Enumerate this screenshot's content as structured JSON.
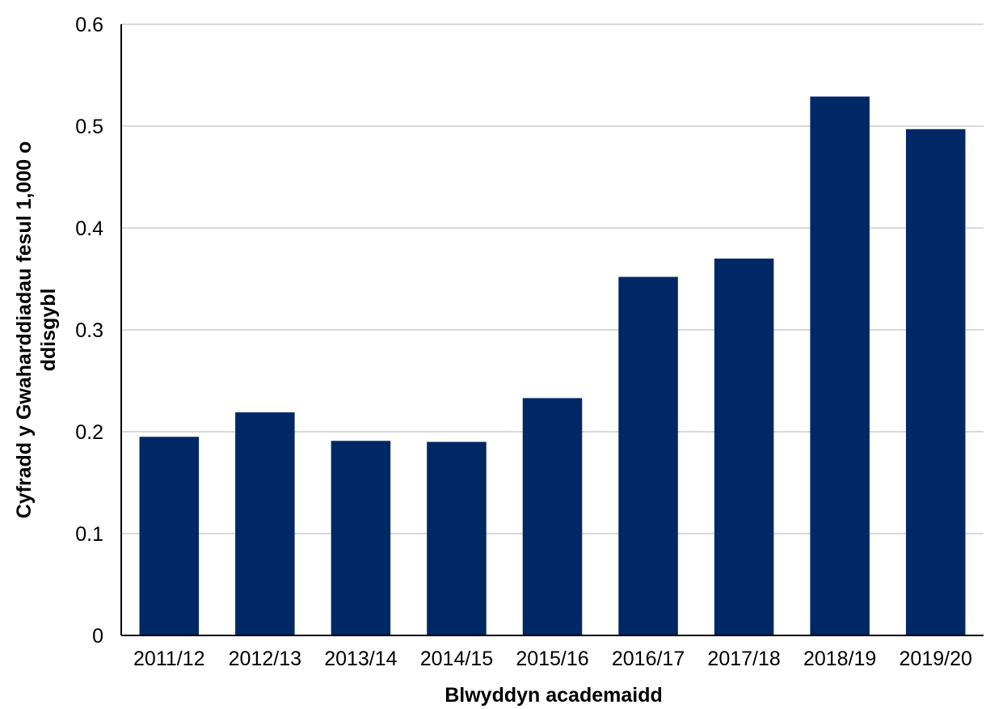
{
  "chart_data": {
    "type": "bar",
    "title": "",
    "xlabel": "Blwyddyn academaidd",
    "ylabel_line1": "Cyfradd y Gwaharddiadau fesul 1,000 o",
    "ylabel_line2": "ddisgybl",
    "categories": [
      "2011/12",
      "2012/13",
      "2013/14",
      "2014/15",
      "2015/16",
      "2016/17",
      "2017/18",
      "2018/19",
      "2019/20"
    ],
    "values": [
      0.195,
      0.219,
      0.191,
      0.19,
      0.233,
      0.352,
      0.37,
      0.529,
      0.497
    ],
    "ylim": [
      0,
      0.6
    ],
    "yticks": [
      "0",
      "0.1",
      "0.2",
      "0.3",
      "0.4",
      "0.5",
      "0.6"
    ],
    "grid": true,
    "legend": "none",
    "colors": {
      "bar": "#002864",
      "grid": "#d9d9d9",
      "axis": "#000000"
    }
  }
}
